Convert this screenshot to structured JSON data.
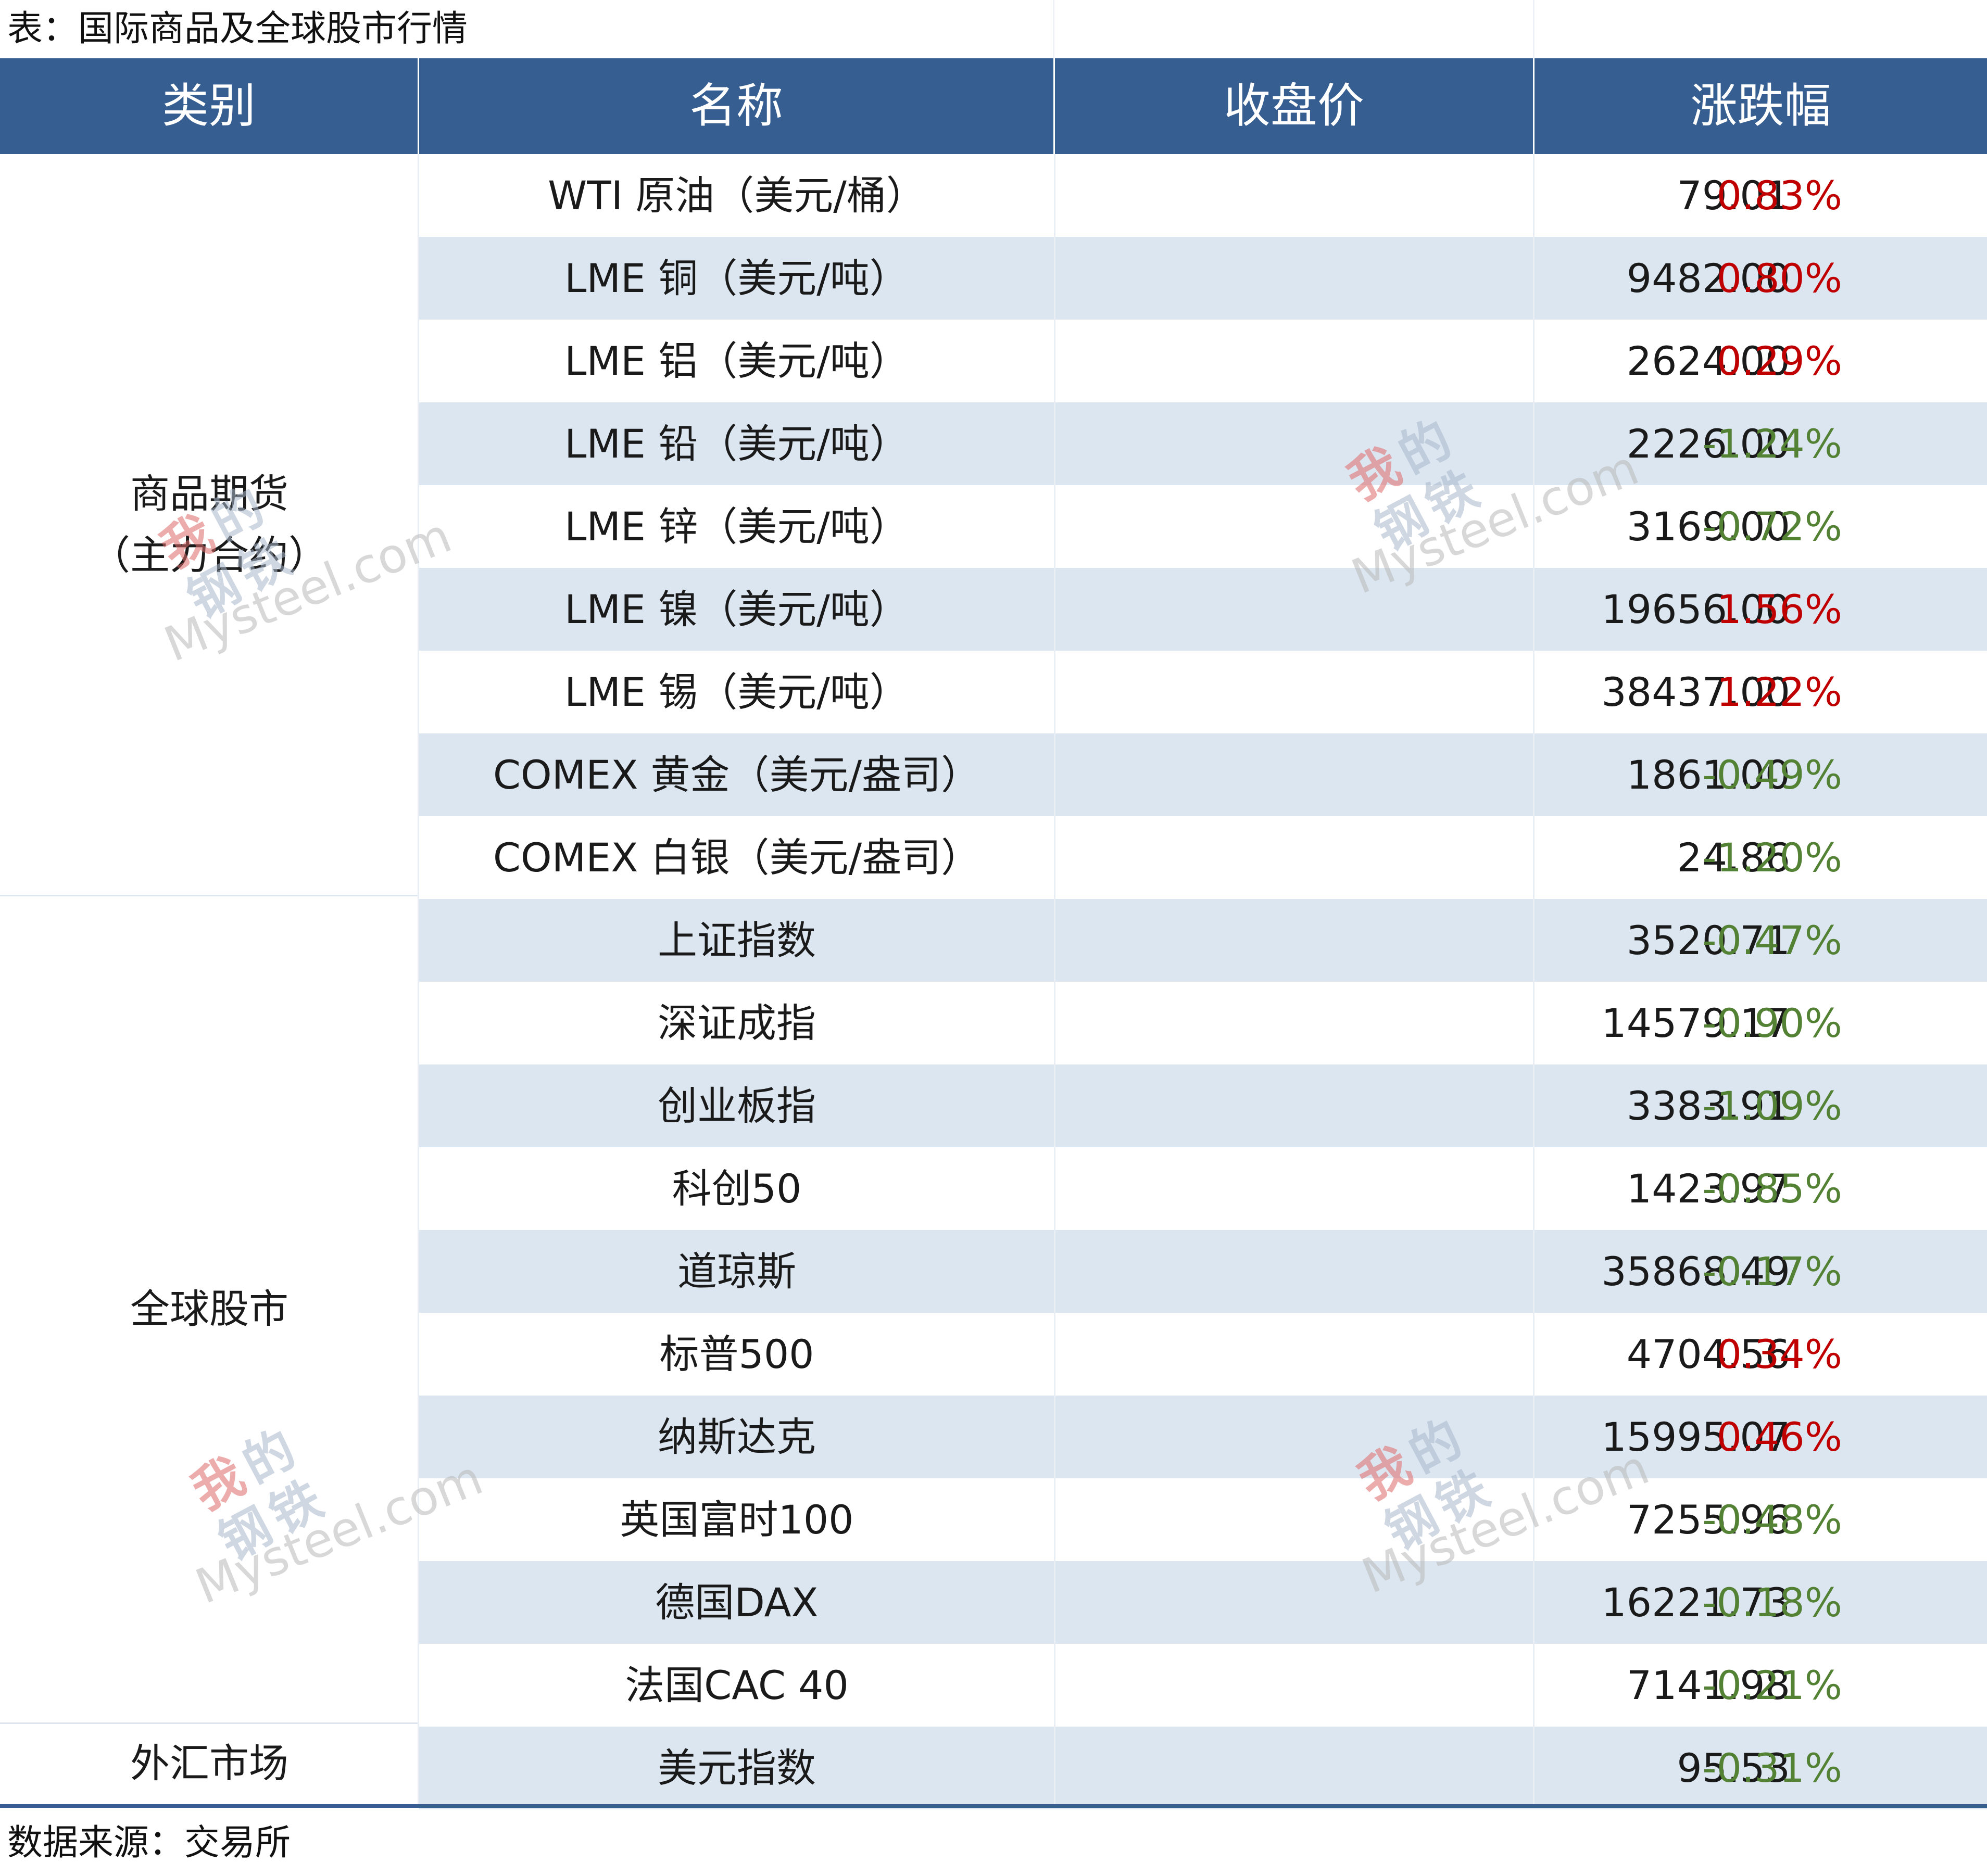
{
  "caption": "表：国际商品及全球股市行情",
  "headers": {
    "category": "类别",
    "name": "名称",
    "price": "收盘价",
    "change": "涨跌幅"
  },
  "categories": [
    {
      "line1": "商品期货",
      "line2": "（主力合约）"
    },
    {
      "line1": "全球股市",
      "line2": ""
    },
    {
      "line1": "外汇市场",
      "line2": ""
    }
  ],
  "rows": [
    {
      "name": "WTI 原油（美元/桶）",
      "price": "79.01",
      "change": "0.83%",
      "dir": "up"
    },
    {
      "name": "LME 铜（美元/吨）",
      "price": "9482.00",
      "change": "0.80%",
      "dir": "up"
    },
    {
      "name": "LME 铝（美元/吨）",
      "price": "2624.00",
      "change": "0.29%",
      "dir": "up"
    },
    {
      "name": "LME 铅（美元/吨）",
      "price": "2226.00",
      "change": "-1.24%",
      "dir": "down"
    },
    {
      "name": "LME 锌（美元/吨）",
      "price": "3169.00",
      "change": "-0.72%",
      "dir": "down"
    },
    {
      "name": "LME 镍（美元/吨）",
      "price": "19656.00",
      "change": "1.56%",
      "dir": "up"
    },
    {
      "name": "LME 锡（美元/吨）",
      "price": "38437.00",
      "change": "1.22%",
      "dir": "up"
    },
    {
      "name": "COMEX 黄金（美元/盎司）",
      "price": "1861.00",
      "change": "-0.49%",
      "dir": "down"
    },
    {
      "name": "COMEX 白银（美元/盎司）",
      "price": "24.86",
      "change": "-1.20%",
      "dir": "down"
    },
    {
      "name": "上证指数",
      "price": "3520.71",
      "change": "-0.47%",
      "dir": "down"
    },
    {
      "name": "深证成指",
      "price": "14579.17",
      "change": "-0.90%",
      "dir": "down"
    },
    {
      "name": "创业板指",
      "price": "3383.91",
      "change": "-1.09%",
      "dir": "down"
    },
    {
      "name": "科创50",
      "price": "1423.97",
      "change": "-0.85%",
      "dir": "down"
    },
    {
      "name": "道琼斯",
      "price": "35868.49",
      "change": "-0.17%",
      "dir": "down"
    },
    {
      "name": "标普500",
      "price": "4704.56",
      "change": "0.34%",
      "dir": "up"
    },
    {
      "name": "纳斯达克",
      "price": "15995.07",
      "change": "0.46%",
      "dir": "up"
    },
    {
      "name": "英国富时100",
      "price": "7255.96",
      "change": "-0.48%",
      "dir": "down"
    },
    {
      "name": "德国DAX",
      "price": "16221.73",
      "change": "-0.18%",
      "dir": "down"
    },
    {
      "name": "法国CAC 40",
      "price": "7141.98",
      "change": "-0.21%",
      "dir": "down"
    },
    {
      "name": "美元指数",
      "price": "95.53",
      "change": "-0.31%",
      "dir": "down"
    }
  ],
  "footnote": "数据来源：交易所",
  "watermark": {
    "seal_chars": [
      "我",
      "的",
      "钢",
      "铁"
    ],
    "brand": "Mysteel.com"
  },
  "colors": {
    "header_bg": "#365e91",
    "row_shade": "#dce6f1",
    "up": "#c00000",
    "down": "#548235"
  }
}
